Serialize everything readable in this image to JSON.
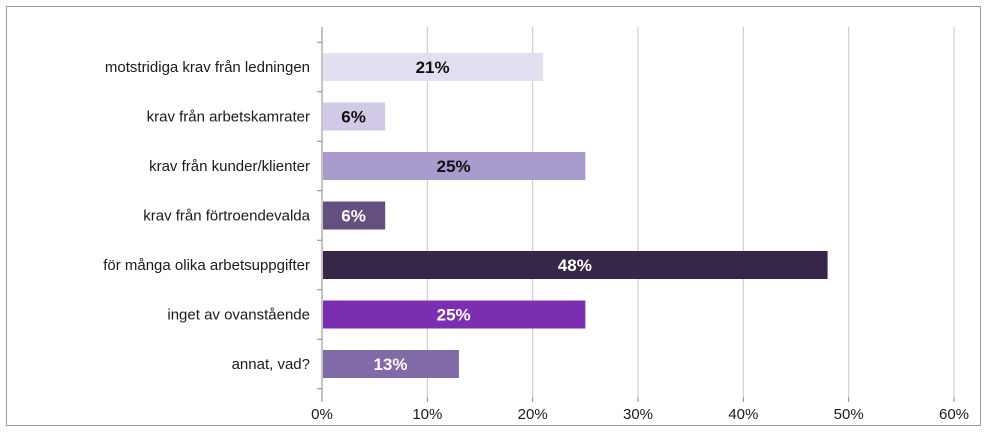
{
  "chart_data": {
    "type": "bar",
    "orientation": "horizontal",
    "categories": [
      "motstridiga krav från ledningen",
      "krav från arbetskamrater",
      "krav från kunder/klienter",
      "krav från förtroendevalda",
      "för många olika arbetsuppgifter",
      "inget av ovanstående",
      "annat, vad?"
    ],
    "values": [
      21,
      6,
      25,
      6,
      48,
      25,
      13
    ],
    "value_labels": [
      "21%",
      "6%",
      "25%",
      "6%",
      "48%",
      "25%",
      "13%"
    ],
    "bar_colors": [
      "#e4dff0",
      "#d2c9e6",
      "#a99bcd",
      "#64507f",
      "#362648",
      "#7b2fb0",
      "#806aa8"
    ],
    "label_colors": [
      "#111111",
      "#111111",
      "#111111",
      "#ffffff",
      "#ffffff",
      "#ffffff",
      "#ffffff"
    ],
    "xlim": [
      0,
      60
    ],
    "xticks": [
      0,
      10,
      20,
      30,
      40,
      50,
      60
    ],
    "xtick_labels": [
      "0%",
      "10%",
      "20%",
      "30%",
      "40%",
      "50%",
      "60%"
    ],
    "grid": "vertical",
    "grid_color": "#c8c8c8",
    "title": "",
    "xlabel": "",
    "ylabel": "",
    "legend": "none"
  }
}
